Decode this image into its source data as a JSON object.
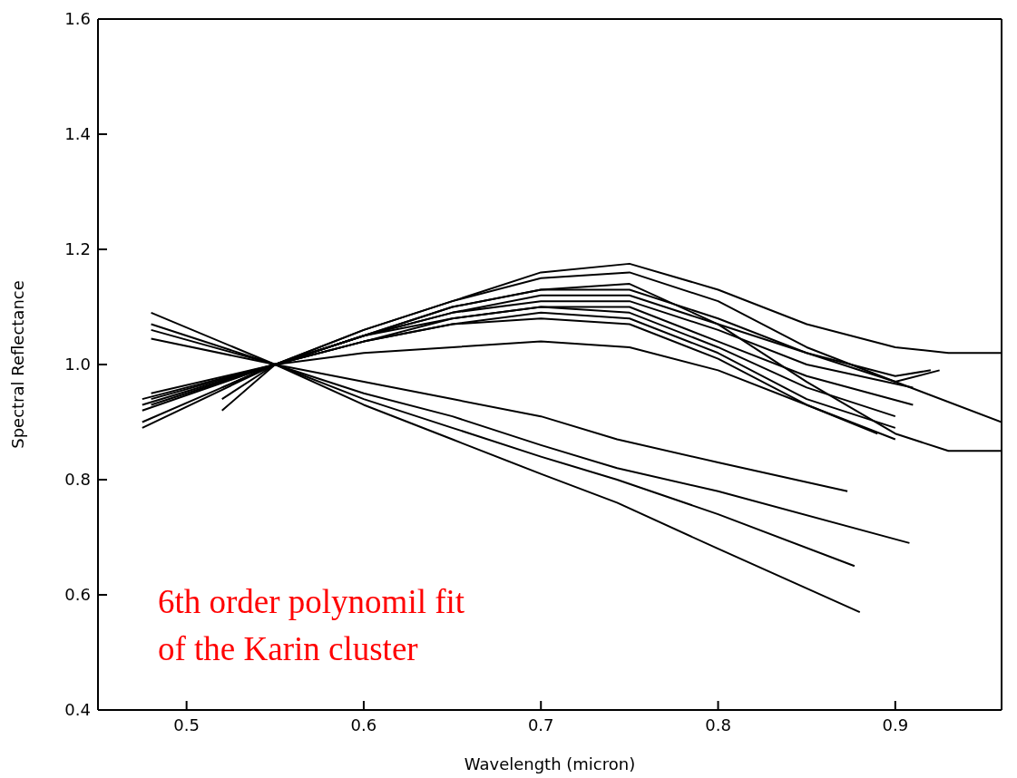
{
  "chart_data": {
    "type": "line",
    "xlabel": "Wavelength (micron)",
    "ylabel": "Spectral Reflectance",
    "xlim": [
      0.45,
      0.96
    ],
    "ylim": [
      0.4,
      1.6
    ],
    "xticks": [
      0.5,
      0.6,
      0.7,
      0.8,
      0.9
    ],
    "yticks": [
      0.4,
      0.6,
      0.8,
      {
        "value": 1,
        "label": "1.0"
      },
      1.2,
      1.4,
      1.6
    ],
    "grid": false,
    "marker": "none",
    "line_style": "solid",
    "annotations": [
      "6th order polynomil fit\nof the Karin cluster"
    ],
    "series": [
      {
        "color": "#000000",
        "x": [
          0.48,
          0.55,
          0.6,
          0.65,
          0.7,
          0.743,
          0.8,
          0.873
        ],
        "values": [
          1.09,
          1.0,
          0.97,
          0.94,
          0.91,
          0.87,
          0.83,
          0.78
        ]
      },
      {
        "color": "#000000",
        "x": [
          0.48,
          0.55,
          0.6,
          0.65,
          0.7,
          0.743,
          0.8,
          0.908
        ],
        "values": [
          1.07,
          1.0,
          0.95,
          0.91,
          0.86,
          0.82,
          0.78,
          0.69
        ]
      },
      {
        "color": "#000000",
        "x": [
          0.48,
          0.55,
          0.6,
          0.65,
          0.7,
          0.743,
          0.8,
          0.877
        ],
        "values": [
          1.06,
          1.0,
          0.94,
          0.89,
          0.84,
          0.8,
          0.74,
          0.65
        ]
      },
      {
        "color": "#000000",
        "x": [
          0.48,
          0.55,
          0.6,
          0.65,
          0.7,
          0.743,
          0.8,
          0.88
        ],
        "values": [
          1.045,
          1.0,
          0.93,
          0.87,
          0.81,
          0.76,
          0.68,
          0.57
        ]
      },
      {
        "color": "#000000",
        "x": [
          0.48,
          0.55,
          0.6,
          0.65,
          0.7,
          0.75,
          0.8,
          0.85,
          0.9,
          0.93,
          0.96
        ],
        "values": [
          0.94,
          1.0,
          1.06,
          1.11,
          1.16,
          1.175,
          1.13,
          1.07,
          1.03,
          1.02,
          1.02
        ]
      },
      {
        "color": "#000000",
        "x": [
          0.48,
          0.55,
          0.6,
          0.65,
          0.7,
          0.75,
          0.8,
          0.85,
          0.9,
          0.96
        ],
        "values": [
          0.93,
          1.0,
          1.06,
          1.11,
          1.15,
          1.16,
          1.11,
          1.03,
          0.97,
          0.9
        ]
      },
      {
        "color": "#000000",
        "x": [
          0.52,
          0.55,
          0.6,
          0.65,
          0.7,
          0.75,
          0.8,
          0.85,
          0.9,
          0.93,
          0.96
        ],
        "values": [
          0.94,
          1.0,
          1.05,
          1.1,
          1.13,
          1.14,
          1.07,
          0.97,
          0.88,
          0.85,
          0.85
        ]
      },
      {
        "color": "#000000",
        "x": [
          0.48,
          0.55,
          0.6,
          0.65,
          0.7,
          0.75,
          0.8,
          0.85,
          0.9,
          0.925
        ],
        "values": [
          0.95,
          1.0,
          1.05,
          1.1,
          1.13,
          1.13,
          1.08,
          1.02,
          0.97,
          0.99
        ]
      },
      {
        "color": "#000000",
        "x": [
          0.475,
          0.55,
          0.6,
          0.65,
          0.7,
          0.75,
          0.8,
          0.85,
          0.9,
          0.92
        ],
        "values": [
          0.94,
          1.0,
          1.05,
          1.09,
          1.12,
          1.12,
          1.07,
          1.02,
          0.98,
          0.99
        ]
      },
      {
        "color": "#000000",
        "x": [
          0.475,
          0.55,
          0.6,
          0.65,
          0.7,
          0.75,
          0.8,
          0.85,
          0.91
        ],
        "values": [
          0.93,
          1.0,
          1.05,
          1.09,
          1.11,
          1.11,
          1.06,
          1.0,
          0.96
        ]
      },
      {
        "color": "#000000",
        "x": [
          0.52,
          0.55,
          0.6,
          0.65,
          0.7,
          0.75,
          0.8,
          0.85,
          0.91
        ],
        "values": [
          0.96,
          1.0,
          1.05,
          1.08,
          1.1,
          1.1,
          1.04,
          0.98,
          0.93
        ]
      },
      {
        "color": "#000000",
        "x": [
          0.475,
          0.55,
          0.6,
          0.65,
          0.7,
          0.75,
          0.8,
          0.85,
          0.9
        ],
        "values": [
          0.92,
          1.0,
          1.04,
          1.08,
          1.1,
          1.09,
          1.03,
          0.96,
          0.91
        ]
      },
      {
        "color": "#000000",
        "x": [
          0.52,
          0.55,
          0.6,
          0.65,
          0.7,
          0.75,
          0.8,
          0.85,
          0.9
        ],
        "values": [
          0.92,
          1.0,
          1.04,
          1.07,
          1.09,
          1.08,
          1.02,
          0.94,
          0.89
        ]
      },
      {
        "color": "#000000",
        "x": [
          0.475,
          0.55,
          0.6,
          0.65,
          0.7,
          0.75,
          0.8,
          0.85,
          0.89
        ],
        "values": [
          0.9,
          1.0,
          1.04,
          1.07,
          1.08,
          1.07,
          1.01,
          0.93,
          0.88
        ]
      },
      {
        "color": "#000000",
        "x": [
          0.475,
          0.55,
          0.6,
          0.65,
          0.7,
          0.75,
          0.8,
          0.85,
          0.9
        ],
        "values": [
          0.89,
          1.0,
          1.02,
          1.03,
          1.04,
          1.03,
          0.99,
          0.93,
          0.87
        ]
      }
    ]
  }
}
